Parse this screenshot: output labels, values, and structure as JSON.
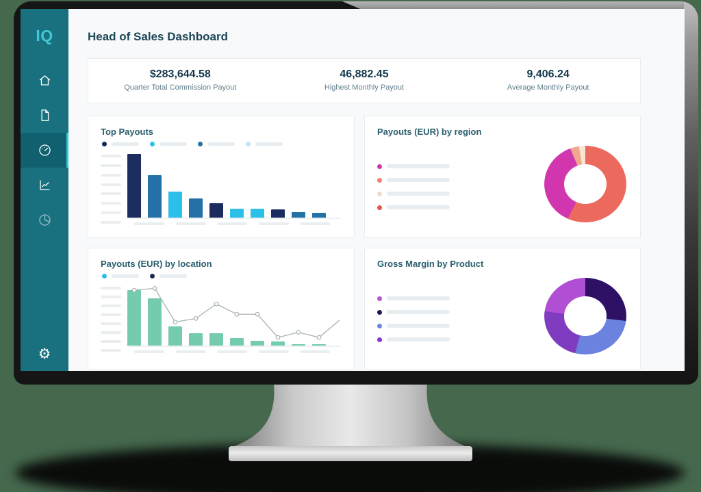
{
  "page": {
    "title": "Head of Sales Dashboard"
  },
  "sidebar": {
    "logo": "IQ",
    "items": [
      {
        "id": "home",
        "icon": "home-icon",
        "active": false,
        "dim": false
      },
      {
        "id": "documents",
        "icon": "document-icon",
        "active": false,
        "dim": false
      },
      {
        "id": "dashboard",
        "icon": "gauge-icon",
        "active": true,
        "dim": false
      },
      {
        "id": "analytics",
        "icon": "line-chart-icon",
        "active": false,
        "dim": false
      },
      {
        "id": "reports",
        "icon": "pie-chart-icon",
        "active": false,
        "dim": true
      }
    ],
    "settings_icon": "gear-icon"
  },
  "stats": {
    "items": [
      {
        "value": "$283,644.58",
        "label": "Quarter Total Commission Payout"
      },
      {
        "value": "46,882.45",
        "label": "Highest Monthly Payout"
      },
      {
        "value": "9,406.24",
        "label": "Average Monthly Payout"
      }
    ]
  },
  "colors": {
    "sidebar": "#19717f",
    "sidebar_active": "#11606f",
    "accent_cyan": "#2fc8d8",
    "heading": "#1d4656",
    "card_title": "#2b5f6e",
    "placeholder": "#e9eef1"
  },
  "chart_data": [
    {
      "type": "bar",
      "title": "Top Payouts",
      "note": "axis tick and category labels are shown as skeleton placeholders, no numbers visible",
      "values_pct": [
        99,
        66,
        40,
        30,
        22,
        14,
        14,
        13,
        9,
        7
      ],
      "bar_colors": [
        "#1b2d5e",
        "#2471a8",
        "#2cc0e8",
        "#2471a8",
        "#1b2d5e",
        "#2cc0e8",
        "#2cc0e8",
        "#1b2d5e",
        "#2471a8",
        "#2471a8"
      ],
      "legend": {
        "layout": "row",
        "colors": [
          "#16265c",
          "#2cc0e8",
          "#2471a8",
          "#bfe6f2"
        ],
        "labels_placeholder": true
      },
      "grid": false
    },
    {
      "type": "pie",
      "title": "Payouts (EUR) by region",
      "note": "donut chart, slice shares estimated from angles; legend labels are skeleton placeholders",
      "segments": [
        {
          "color": "#ec6a5d",
          "value": 57
        },
        {
          "color": "#d136ae",
          "value": 37
        },
        {
          "color": "#f1a78f",
          "value": 3.5
        },
        {
          "color": "#f8e6d4",
          "value": 2.5
        }
      ],
      "legend": {
        "layout": "column",
        "colors": [
          "#d136ae",
          "#ec8170",
          "#f6d9c8",
          "#e25548"
        ],
        "labels_placeholder": true
      }
    },
    {
      "type": "bar",
      "title": "Payouts (EUR) by location",
      "note": "bars with grey trend line overlay; axis labels are skeleton placeholders",
      "values_pct": [
        92,
        78,
        32,
        21,
        21,
        12,
        8,
        7,
        2,
        2
      ],
      "bar_color": "#74cbad",
      "line": {
        "color": "#a9b1b6",
        "values_pct": [
          92,
          95,
          39,
          45,
          69,
          52,
          52,
          13.5,
          22,
          13.5
        ],
        "end_value_pct": 42
      },
      "legend": {
        "layout": "row",
        "colors": [
          "#2cc0e8",
          "#1d2b4f"
        ],
        "labels_placeholder": true
      },
      "grid": false
    },
    {
      "type": "pie",
      "title": "Gross Margin by Product",
      "note": "donut chart, slice shares estimated from angles; legend labels are skeleton placeholders",
      "segments": [
        {
          "color": "#2e1065",
          "value": 27
        },
        {
          "color": "#6b83de",
          "value": 27
        },
        {
          "color": "#7f3cc0",
          "value": 23
        },
        {
          "color": "#b14fd4",
          "value": 23
        }
      ],
      "legend": {
        "layout": "column",
        "colors": [
          "#b555d2",
          "#2a1158",
          "#6e86e0",
          "#8a35c9"
        ],
        "labels_placeholder": true
      }
    }
  ]
}
